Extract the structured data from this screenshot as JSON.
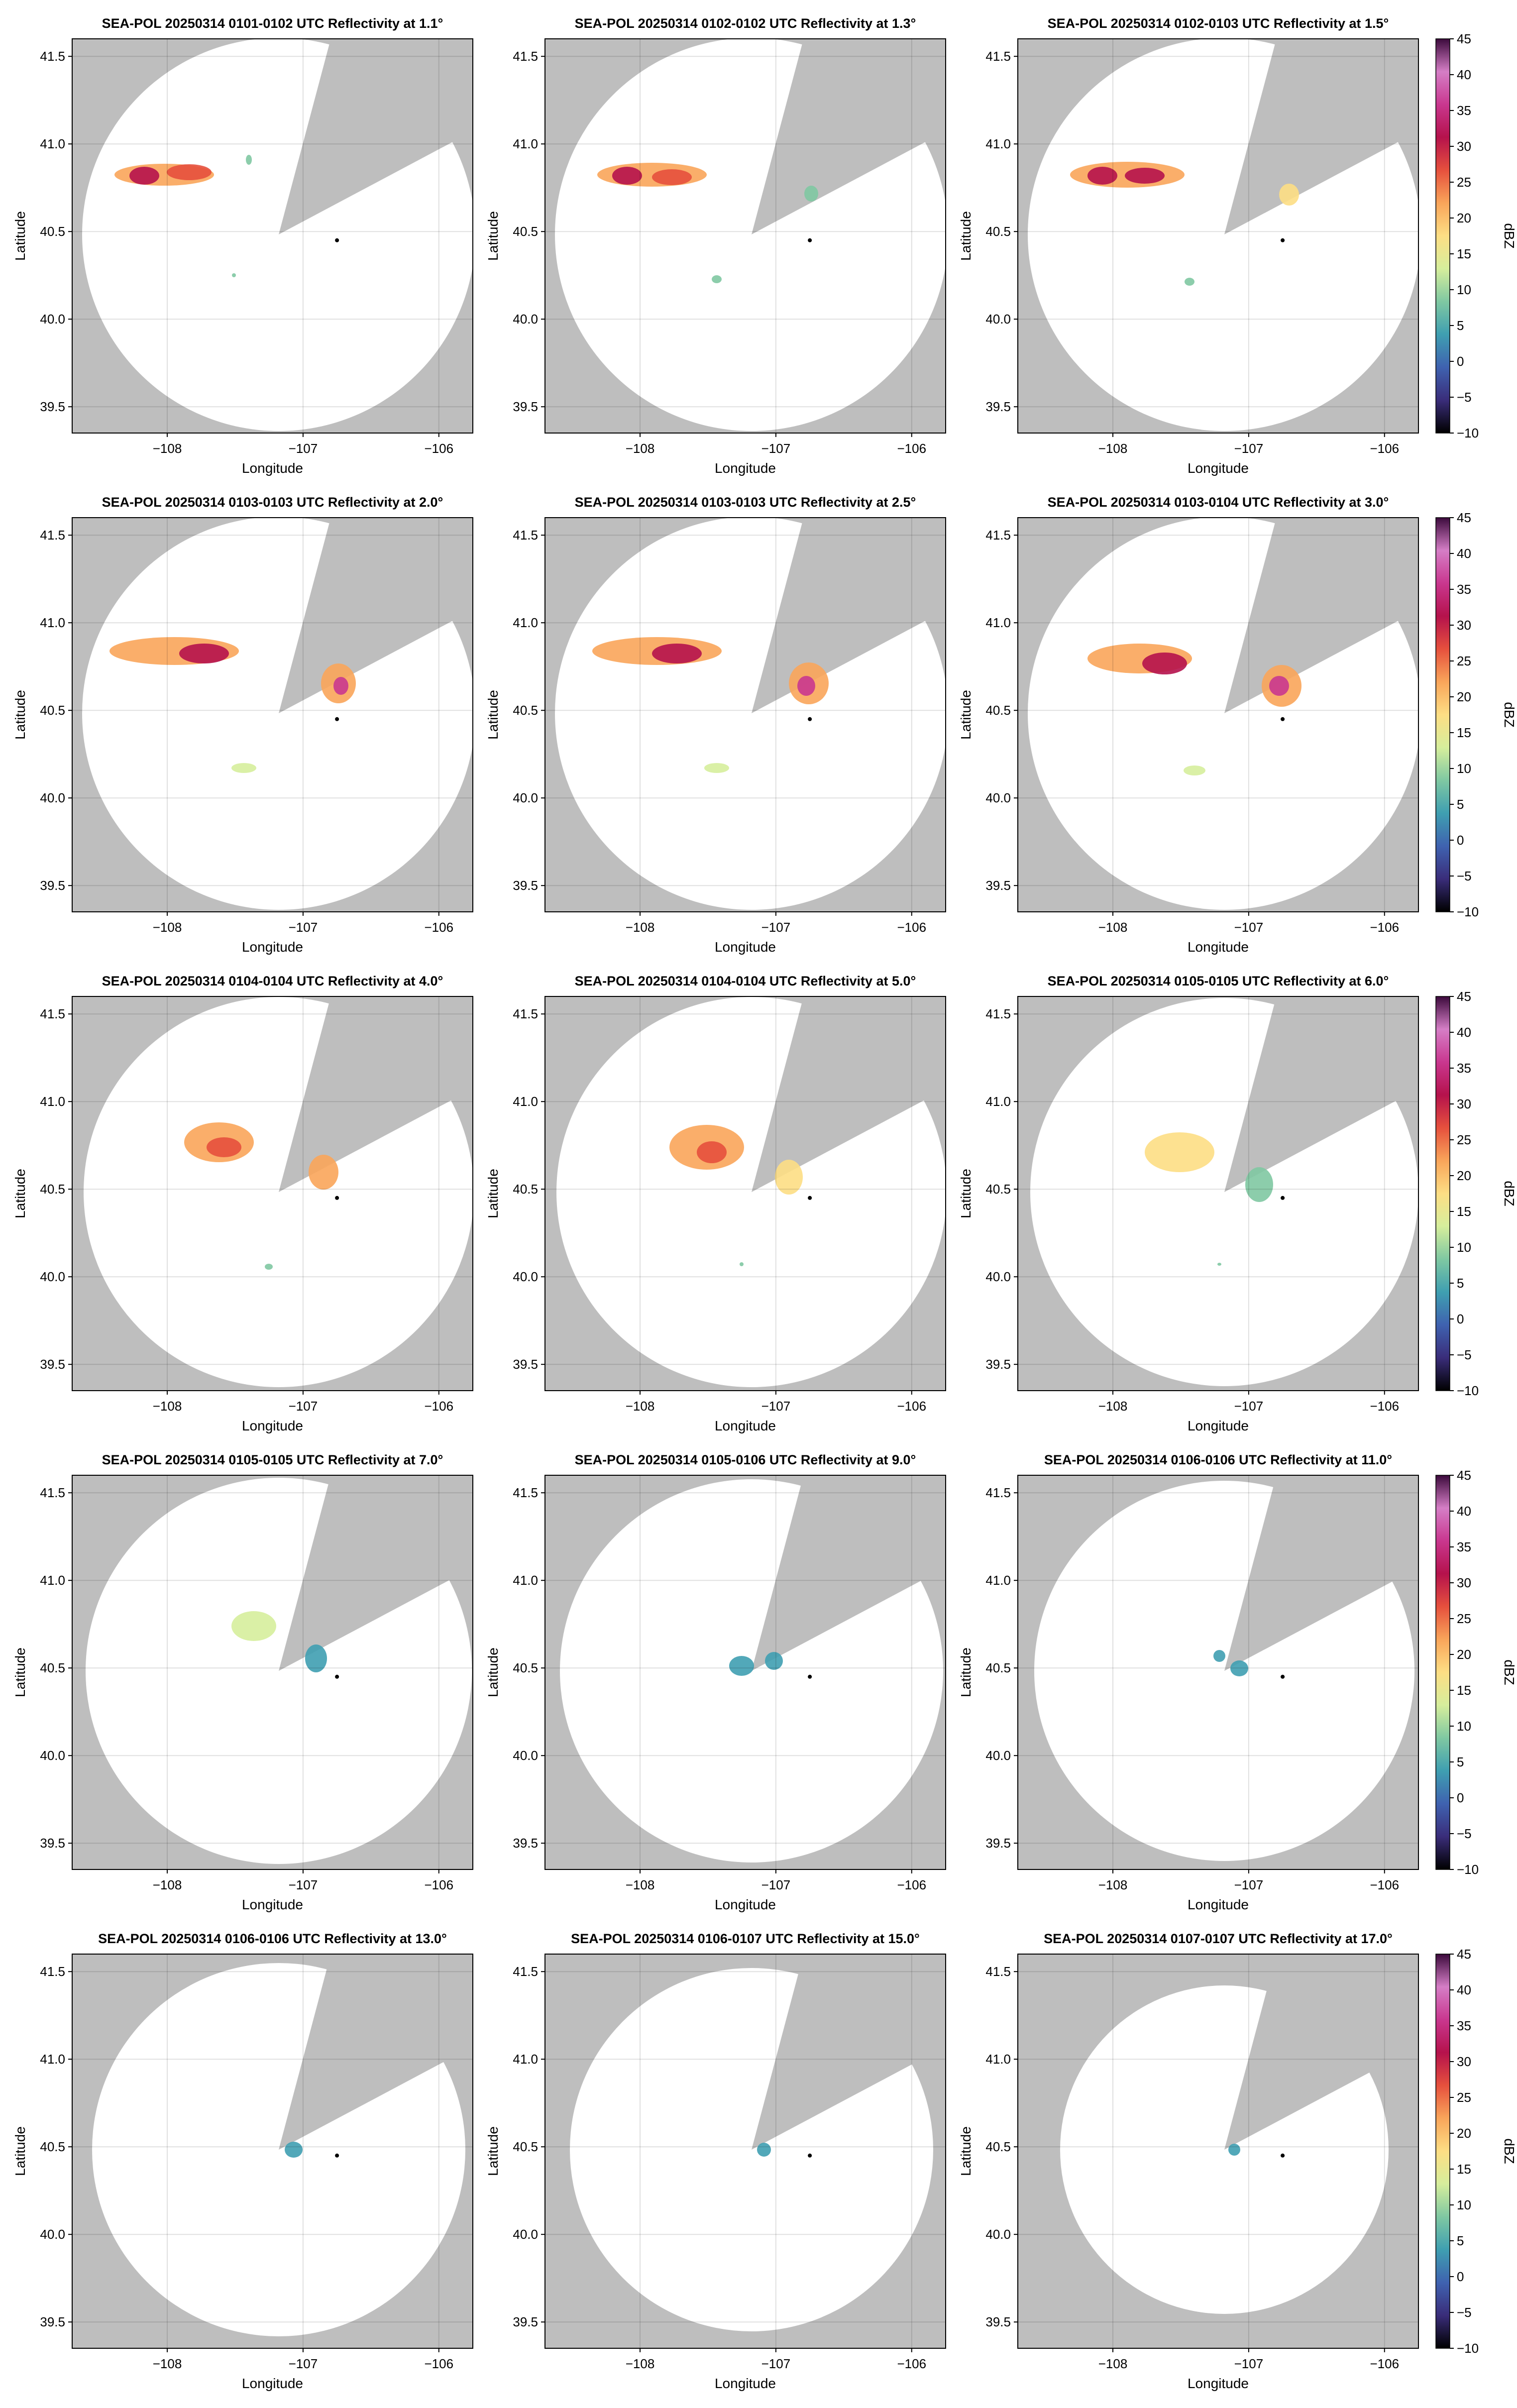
{
  "figure": {
    "xlabel": "Longitude",
    "ylabel": "Latitude",
    "colorbar_label": "dBZ",
    "colorbar_ticks": [
      "45",
      "40",
      "35",
      "30",
      "25",
      "20",
      "15",
      "10",
      "5",
      "0",
      "−5",
      "−10"
    ],
    "x_ticks": [
      "−108",
      "−107",
      "−106"
    ],
    "y_ticks": [
      "41.5",
      "41.0",
      "40.5",
      "40.0",
      "39.5"
    ]
  },
  "chart_data": {
    "type": "heatmap",
    "variable": "Reflectivity",
    "units": "dBZ",
    "color_range": [
      -10,
      45
    ],
    "xlim": [
      -108.7,
      -105.75
    ],
    "ylim": [
      39.35,
      41.6
    ],
    "x_tick_values": [
      -108,
      -107,
      -106
    ],
    "y_tick_values": [
      41.5,
      41.0,
      40.5,
      40.0,
      39.5
    ],
    "grid": true,
    "radar_location": [
      -107.18,
      40.5
    ],
    "site_marker": [
      -106.75,
      40.45
    ],
    "missing_color": "#bebebe",
    "colormap": [
      "#000000",
      "#3a2d7a",
      "#3f62b0",
      "#3f9fb1",
      "#7fc8a2",
      "#d6ee9c",
      "#fdde84",
      "#f9a55a",
      "#e6503d",
      "#b5124c",
      "#c9378f",
      "#d57ec6",
      "#3c0a3c"
    ],
    "panels": [
      {
        "title": "SEA-POL 20250314 0101-0102 UTC Reflectivity at 1.1°",
        "elevation_deg": 1.1
      },
      {
        "title": "SEA-POL 20250314 0102-0102 UTC Reflectivity at 1.3°",
        "elevation_deg": 1.3
      },
      {
        "title": "SEA-POL 20250314 0102-0103 UTC Reflectivity at 1.5°",
        "elevation_deg": 1.5
      },
      {
        "title": "SEA-POL 20250314 0103-0103 UTC Reflectivity at 2.0°",
        "elevation_deg": 2.0
      },
      {
        "title": "SEA-POL 20250314 0103-0103 UTC Reflectivity at 2.5°",
        "elevation_deg": 2.5
      },
      {
        "title": "SEA-POL 20250314 0103-0104 UTC Reflectivity at 3.0°",
        "elevation_deg": 3.0
      },
      {
        "title": "SEA-POL 20250314 0104-0104 UTC Reflectivity at 4.0°",
        "elevation_deg": 4.0
      },
      {
        "title": "SEA-POL 20250314 0104-0104 UTC Reflectivity at 5.0°",
        "elevation_deg": 5.0
      },
      {
        "title": "SEA-POL 20250314 0105-0105 UTC Reflectivity at 6.0°",
        "elevation_deg": 6.0
      },
      {
        "title": "SEA-POL 20250314 0105-0105 UTC Reflectivity at 7.0°",
        "elevation_deg": 7.0
      },
      {
        "title": "SEA-POL 20250314 0105-0106 UTC Reflectivity at 9.0°",
        "elevation_deg": 9.0
      },
      {
        "title": "SEA-POL 20250314 0106-0106 UTC Reflectivity at 11.0°",
        "elevation_deg": 11.0
      },
      {
        "title": "SEA-POL 20250314 0106-0106 UTC Reflectivity at 13.0°",
        "elevation_deg": 13.0
      },
      {
        "title": "SEA-POL 20250314 0106-0107 UTC Reflectivity at 15.0°",
        "elevation_deg": 15.0
      },
      {
        "title": "SEA-POL 20250314 0107-0107 UTC Reflectivity at 17.0°",
        "elevation_deg": 17.0
      }
    ]
  }
}
